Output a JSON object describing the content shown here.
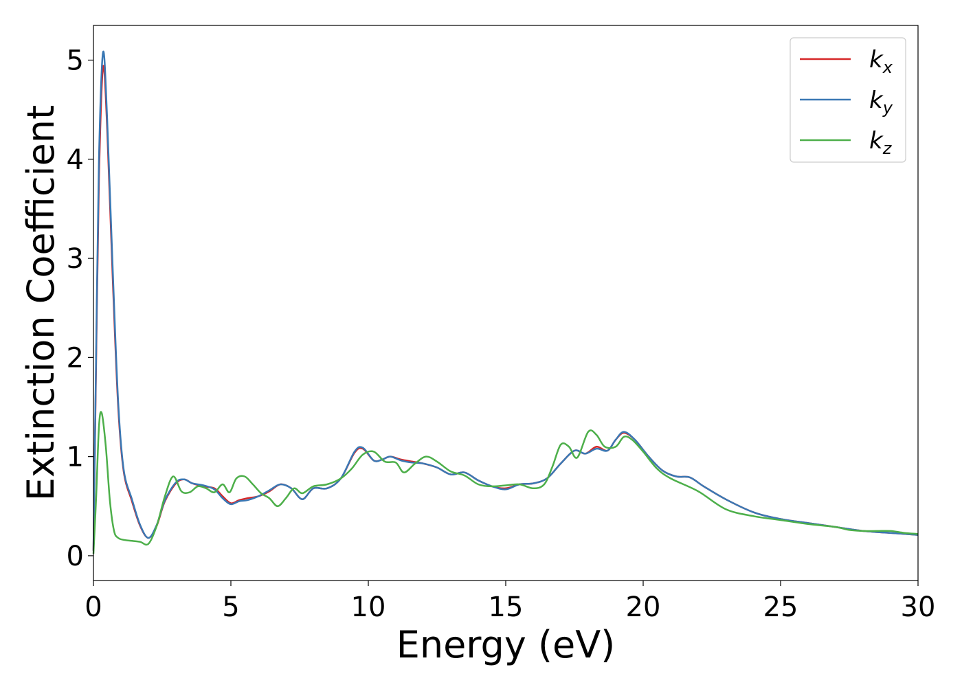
{
  "chart_data": {
    "type": "line",
    "xlabel": "Energy (eV)",
    "ylabel": "Extinction Coefficient",
    "xlim": [
      0,
      30
    ],
    "ylim": [
      -0.25,
      5.35
    ],
    "xticks": [
      0,
      5,
      10,
      15,
      20,
      25,
      30
    ],
    "xtick_labels": [
      "0",
      "5",
      "10",
      "15",
      "20",
      "25",
      "30"
    ],
    "yticks": [
      0,
      1,
      2,
      3,
      4,
      5
    ],
    "ytick_labels": [
      "0",
      "1",
      "2",
      "3",
      "4",
      "5"
    ],
    "grid": false,
    "legend": "top-right",
    "series": [
      {
        "name": "k_x",
        "label_base": "k",
        "label_sub": "x",
        "color": "#d62728",
        "x": [
          0,
          0.1,
          0.2,
          0.35,
          0.5,
          0.7,
          0.9,
          1.1,
          1.4,
          1.7,
          2.0,
          2.3,
          2.6,
          3.0,
          3.3,
          3.6,
          4.0,
          4.4,
          4.7,
          5.0,
          5.3,
          5.6,
          6.0,
          6.4,
          6.8,
          7.2,
          7.6,
          8.0,
          8.5,
          9.0,
          9.5,
          9.8,
          10.2,
          10.5,
          10.8,
          11.2,
          11.6,
          12.0,
          12.5,
          13.0,
          13.5,
          14.0,
          14.5,
          15.0,
          15.5,
          16.0,
          16.5,
          17.0,
          17.5,
          17.9,
          18.3,
          18.7,
          19.0,
          19.3,
          19.7,
          20.2,
          20.7,
          21.2,
          21.7,
          22.2,
          23.0,
          24.0,
          25.0,
          26.0,
          27.0,
          28.0,
          29.0,
          30.0
        ],
        "values": [
          0.05,
          2.0,
          3.8,
          4.93,
          4.3,
          2.8,
          1.5,
          0.85,
          0.55,
          0.3,
          0.18,
          0.3,
          0.55,
          0.73,
          0.77,
          0.73,
          0.7,
          0.68,
          0.6,
          0.53,
          0.56,
          0.58,
          0.6,
          0.65,
          0.72,
          0.68,
          0.57,
          0.68,
          0.68,
          0.78,
          1.04,
          1.08,
          0.96,
          0.97,
          1.0,
          0.97,
          0.95,
          0.93,
          0.89,
          0.82,
          0.84,
          0.76,
          0.7,
          0.68,
          0.72,
          0.73,
          0.78,
          0.93,
          1.06,
          1.03,
          1.1,
          1.06,
          1.17,
          1.24,
          1.17,
          1.0,
          0.86,
          0.8,
          0.79,
          0.7,
          0.57,
          0.44,
          0.37,
          0.33,
          0.29,
          0.25,
          0.23,
          0.21
        ]
      },
      {
        "name": "k_y",
        "label_base": "k",
        "label_sub": "y",
        "color": "#3a78b4",
        "x": [
          0,
          0.1,
          0.2,
          0.35,
          0.5,
          0.7,
          0.9,
          1.1,
          1.4,
          1.7,
          2.0,
          2.3,
          2.6,
          3.0,
          3.3,
          3.6,
          4.0,
          4.4,
          4.7,
          5.0,
          5.3,
          5.6,
          6.0,
          6.4,
          6.8,
          7.2,
          7.6,
          8.0,
          8.5,
          9.0,
          9.5,
          9.8,
          10.2,
          10.5,
          10.8,
          11.2,
          11.6,
          12.0,
          12.5,
          13.0,
          13.5,
          14.0,
          14.5,
          15.0,
          15.5,
          16.0,
          16.5,
          17.0,
          17.5,
          17.9,
          18.3,
          18.7,
          19.0,
          19.3,
          19.7,
          20.2,
          20.7,
          21.2,
          21.7,
          22.2,
          23.0,
          24.0,
          25.0,
          26.0,
          27.0,
          28.0,
          29.0,
          30.0
        ],
        "values": [
          0.05,
          2.1,
          4.0,
          5.08,
          4.4,
          2.9,
          1.55,
          0.87,
          0.57,
          0.31,
          0.18,
          0.31,
          0.56,
          0.74,
          0.77,
          0.73,
          0.71,
          0.67,
          0.58,
          0.52,
          0.55,
          0.56,
          0.6,
          0.66,
          0.72,
          0.68,
          0.57,
          0.68,
          0.68,
          0.78,
          1.05,
          1.09,
          0.96,
          0.97,
          1.0,
          0.96,
          0.94,
          0.93,
          0.89,
          0.82,
          0.84,
          0.76,
          0.7,
          0.67,
          0.72,
          0.73,
          0.78,
          0.93,
          1.06,
          1.03,
          1.08,
          1.06,
          1.17,
          1.25,
          1.17,
          1.0,
          0.86,
          0.8,
          0.79,
          0.7,
          0.57,
          0.44,
          0.37,
          0.33,
          0.29,
          0.25,
          0.23,
          0.21
        ]
      },
      {
        "name": "k_z",
        "label_base": "k",
        "label_sub": "z",
        "color": "#4daf4a",
        "x": [
          0,
          0.1,
          0.2,
          0.3,
          0.45,
          0.6,
          0.75,
          0.9,
          1.1,
          1.4,
          1.7,
          2.0,
          2.3,
          2.6,
          2.9,
          3.2,
          3.5,
          3.8,
          4.1,
          4.4,
          4.7,
          4.95,
          5.2,
          5.5,
          5.8,
          6.1,
          6.4,
          6.7,
          7.0,
          7.3,
          7.6,
          8.0,
          8.5,
          9.0,
          9.4,
          9.8,
          10.2,
          10.6,
          11.0,
          11.3,
          11.7,
          12.1,
          12.5,
          13.0,
          13.5,
          14.0,
          14.5,
          15.0,
          15.5,
          16.0,
          16.4,
          16.7,
          17.0,
          17.3,
          17.6,
          18.0,
          18.3,
          18.6,
          19.0,
          19.3,
          19.6,
          20.0,
          20.5,
          21.0,
          22.0,
          23.0,
          24.0,
          25.0,
          26.0,
          27.0,
          27.5,
          28.0,
          28.5,
          29.0,
          29.5,
          30.0
        ],
        "values": [
          0.02,
          0.6,
          1.3,
          1.44,
          1.1,
          0.55,
          0.25,
          0.18,
          0.16,
          0.15,
          0.14,
          0.12,
          0.3,
          0.6,
          0.8,
          0.65,
          0.64,
          0.7,
          0.68,
          0.64,
          0.72,
          0.64,
          0.78,
          0.8,
          0.72,
          0.63,
          0.58,
          0.5,
          0.58,
          0.68,
          0.63,
          0.7,
          0.72,
          0.78,
          0.88,
          1.02,
          1.05,
          0.95,
          0.94,
          0.84,
          0.93,
          1.0,
          0.95,
          0.85,
          0.81,
          0.72,
          0.7,
          0.71,
          0.72,
          0.68,
          0.72,
          0.9,
          1.12,
          1.1,
          0.99,
          1.25,
          1.22,
          1.1,
          1.1,
          1.2,
          1.17,
          1.05,
          0.88,
          0.78,
          0.65,
          0.47,
          0.4,
          0.36,
          0.32,
          0.29,
          0.26,
          0.25,
          0.25,
          0.25,
          0.23,
          0.22
        ]
      }
    ]
  }
}
